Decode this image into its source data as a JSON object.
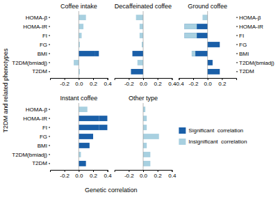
{
  "chart_data": [
    {
      "type": "bar",
      "orientation": "horizontal",
      "stacked": true,
      "grid": false,
      "title": "Coffee intake",
      "xlabel": "Genetic correlation",
      "ylabel": "T2DM and related phenotypes",
      "categories": [
        "T2DM",
        "T2DM(bmiadj)",
        "BMI",
        "FG",
        "FI",
        "HOMA-IR",
        "HOMA-β"
      ],
      "series": [
        {
          "values": [
            0.015,
            -0.07,
            0.22,
            0.015,
            0.04,
            0.065,
            0.1
          ],
          "colors": [
            "#a8d0e0",
            "#a8d0e0",
            "#1a5fa8",
            "#a8d0e0",
            "#a8d0e0",
            "#a8d0e0",
            "#a8d0e0"
          ]
        },
        {
          "values": [
            0.0,
            0.0,
            0.06,
            0.0,
            0.0,
            0.0,
            0.0
          ],
          "colors": [
            "#a8d0e0",
            "#a8d0e0",
            "#1a5fa8",
            "#a8d0e0",
            "#a8d0e0",
            "#a8d0e0",
            "#a8d0e0"
          ]
        }
      ],
      "xlim": [
        -0.4,
        0.4
      ],
      "xticks": [
        -0.2,
        {
          "value": 0,
          "label": "0.0"
        },
        0.2,
        0.4
      ]
    },
    {
      "type": "bar",
      "orientation": "horizontal",
      "grid": false,
      "tick_labels": "x",
      "title": "Decaffeinated coffee",
      "categories": [
        "T2DM",
        "T2DM(bmiadj)",
        "BMI",
        "FG",
        "FI",
        "HOMA-IR",
        "HOMA-β"
      ],
      "series": [
        {
          "values": [
            -0.17,
            -0.08,
            -0.15,
            -0.02,
            -0.05,
            -0.05,
            -0.1
          ],
          "colors": [
            "#1a5fa8",
            "#a8d0e0",
            "#1a5fa8",
            "#a8d0e0",
            "#a8d0e0",
            "#a8d0e0",
            "#a8d0e0"
          ]
        }
      ],
      "xlim": [
        -0.4,
        0.4
      ],
      "xticks": [
        -0.2,
        {
          "value": 0,
          "label": "0.0"
        },
        0.2,
        0.4
      ]
    },
    {
      "type": "bar",
      "orientation": "horizontal",
      "stacked": true,
      "grid": false,
      "title": "Ground coffee",
      "categories": [
        "T2DM",
        "T2DM(bmiadj)",
        "BMI",
        "FG",
        "FI",
        "HOMA-IR",
        "HOMA-β"
      ],
      "series": [
        {
          "values": [
            0.17,
            0.07,
            -0.22,
            0.17,
            -0.32,
            -0.32,
            -0.07
          ],
          "colors": [
            "#1a5fa8",
            "#1a5fa8",
            "#1a5fa8",
            "#1a5fa8",
            "#1a5fa8",
            "#1a5fa8",
            "#a8d0e0"
          ]
        },
        {
          "values": [
            0.0,
            0.0,
            0.05,
            0.0,
            0.17,
            0.17,
            0.0
          ],
          "colors": [
            "#a8d0e0",
            "#a8d0e0",
            "#a8d0e0",
            "#a8d0e0",
            "#a8d0e0",
            "#a8d0e0",
            "#a8d0e0"
          ]
        }
      ],
      "xlim": [
        -0.4,
        0.4
      ],
      "xticks": [
        -0.4,
        -0.2,
        {
          "value": 0,
          "label": "0.0"
        },
        0.2
      ]
    },
    {
      "type": "bar",
      "orientation": "horizontal",
      "stacked": true,
      "grid": false,
      "title": "Instant coffee",
      "categories": [
        "T2DM",
        "T2DM(bmiadj)",
        "BMI",
        "FG",
        "FI",
        "HOMA-IR",
        "HOMA-β"
      ],
      "series": [
        {
          "values": [
            0.1,
            0.03,
            0.15,
            0.2,
            0.28,
            0.28,
            0.12
          ],
          "colors": [
            "#1a5fa8",
            "#a8d0e0",
            "#1a5fa8",
            "#1a5fa8",
            "#1a5fa8",
            "#1a5fa8",
            "#a8d0e0"
          ]
        },
        {
          "values": [
            0.0,
            0.0,
            0.0,
            0.0,
            0.12,
            0.12,
            0.0
          ],
          "colors": [
            "#a8d0e0",
            "#a8d0e0",
            "#a8d0e0",
            "#a8d0e0",
            "#1a5fa8",
            "#1a5fa8",
            "#a8d0e0"
          ]
        }
      ],
      "xlim": [
        -0.4,
        0.4
      ],
      "xticks": [
        -0.2,
        {
          "value": 0,
          "label": "0.0"
        },
        0.2,
        0.4
      ]
    },
    {
      "type": "bar",
      "orientation": "horizontal",
      "grid": false,
      "tick_labels": "x",
      "title": "Other type",
      "categories": [
        "T2DM",
        "T2DM(bmiadj)",
        "BMI",
        "FG",
        "FI",
        "HOMA-IR",
        "HOMA-β"
      ],
      "series": [
        {
          "values": [
            0.1,
            0.1,
            0.05,
            0.22,
            0.05,
            0.05,
            0.03
          ],
          "colors": [
            "#a8d0e0",
            "#a8d0e0",
            "#a8d0e0",
            "#a8d0e0",
            "#a8d0e0",
            "#a8d0e0",
            "#a8d0e0"
          ]
        }
      ],
      "xlim": [
        -0.4,
        0.4
      ],
      "xticks": [
        -0.2,
        {
          "value": 0,
          "label": "0.0"
        },
        0.2,
        0.4
      ]
    },
    {
      "type": "legend",
      "series": [
        {
          "name": "Significant  correlation",
          "color": "#1a5fa8"
        },
        {
          "name": "Insignificant  correlation",
          "color": "#a8d0e0"
        }
      ]
    }
  ]
}
